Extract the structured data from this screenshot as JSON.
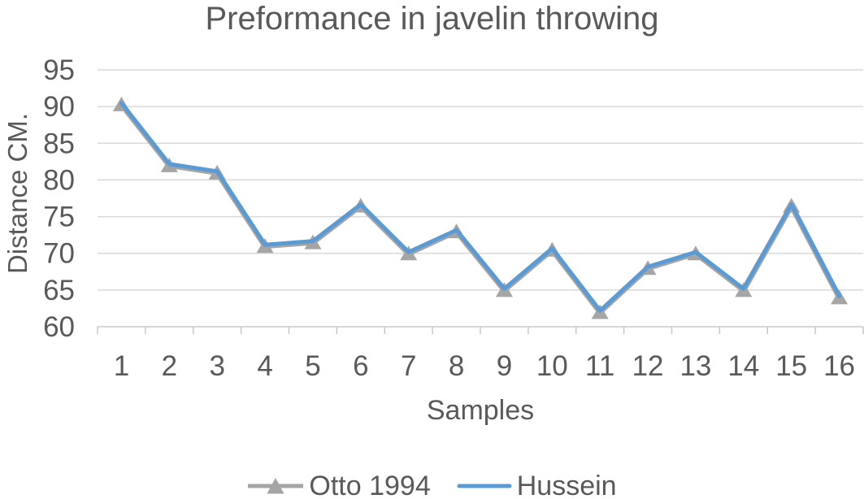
{
  "chart_data": {
    "type": "line",
    "title": "Preformance in javelin throwing",
    "xlabel": "Samples",
    "ylabel": "Distance CM.",
    "categories": [
      "1",
      "2",
      "3",
      "4",
      "5",
      "6",
      "7",
      "8",
      "9",
      "10",
      "11",
      "12",
      "13",
      "14",
      "15",
      "16"
    ],
    "y_ticks": [
      60,
      65,
      70,
      75,
      80,
      85,
      90,
      95
    ],
    "ylim": [
      60,
      95
    ],
    "grid": true,
    "legend_position": "bottom",
    "series": [
      {
        "name": "Otto 1994",
        "color": "#A5A5A5",
        "marker": "triangle",
        "values": [
          90.3,
          82,
          81,
          71,
          71.5,
          76.5,
          70,
          73,
          65,
          70.5,
          62,
          68,
          70,
          65,
          76.5,
          64
        ]
      },
      {
        "name": "Hussein",
        "color": "#5B9BD5",
        "marker": "none",
        "values": [
          90.3,
          82,
          81,
          71,
          71.5,
          76.5,
          70,
          73,
          65,
          70.5,
          62,
          68,
          70,
          65,
          76.5,
          64
        ]
      }
    ]
  },
  "colors": {
    "text": "#595959",
    "gridline": "#D9D9D9",
    "axis": "#C8C8C8",
    "background": "#FFFFFF"
  }
}
